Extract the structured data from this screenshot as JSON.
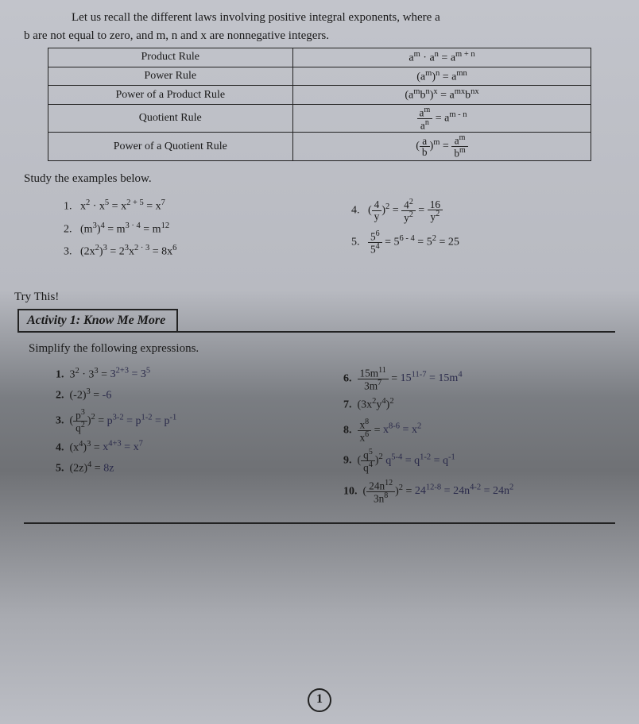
{
  "intro_line1": "Let us recall the different laws involving positive integral exponents, where a",
  "intro_line2": "b are not equal to zero, and m, n and x are nonnegative integers.",
  "rules": [
    {
      "name": "Product Rule",
      "formula_html": "a<span class='sup'>m</span> · a<span class='sup'>n</span> = a<span class='sup'>m + n</span>"
    },
    {
      "name": "Power Rule",
      "formula_html": "(a<span class='sup'>m</span>)<span class='sup'>n</span> = a<span class='sup'>mn</span>"
    },
    {
      "name": "Power of a Product Rule",
      "formula_html": "(a<span class='sup'>m</span>b<span class='sup'>n</span>)<span class='sup'>x</span> = a<span class='sup'>mx</span>b<span class='sup'>nx</span>"
    },
    {
      "name": "Quotient Rule",
      "formula_html": "<span class='frac'><span class='num'>a<span class='sup'>m</span></span><span class='den'>a<span class='sup'>n</span></span></span> = a<span class='sup'>m - n</span>"
    },
    {
      "name": "Power of a Quotient Rule",
      "formula_html": "(<span class='frac'><span class='num'>a</span><span class='den'>b</span></span>)<span class='sup'>m</span> = <span class='frac'><span class='num'>a<span class='sup'>m</span></span><span class='den'>b<span class='sup'>m</span></span></span>"
    }
  ],
  "study_label": "Study the examples below.",
  "examples_left": [
    "1.&nbsp;&nbsp; x<span class='sup'>2</span> · x<span class='sup'>5</span> = x<span class='sup'>2 + 5</span> = x<span class='sup'>7</span>",
    "2.&nbsp;&nbsp; (m<span class='sup'>3</span>)<span class='sup'>4</span> = m<span class='sup'>3 · 4</span> = m<span class='sup'>12</span>",
    "3.&nbsp;&nbsp; (2x<span class='sup'>2</span>)<span class='sup'>3</span> = 2<span class='sup'>3</span>x<span class='sup'>2 · 3</span> = 8x<span class='sup'>6</span>"
  ],
  "examples_right": [
    "4.&nbsp;&nbsp; (<span class='frac'><span class='num'>4</span><span class='den'>y</span></span>)<span class='sup'>2</span> = <span class='frac'><span class='num'>4<span class='sup'>2</span></span><span class='den'>y<span class='sup'>2</span></span></span> = <span class='frac'><span class='num'>16</span><span class='den'>y<span class='sup'>2</span></span></span>",
    "5.&nbsp;&nbsp; <span class='frac'><span class='num'>5<span class='sup'>6</span></span><span class='den'>5<span class='sup'>4</span></span></span> = 5<span class='sup'>6 - 4</span> = 5<span class='sup'>2</span> = 25"
  ],
  "try_this": "Try This!",
  "activity_label": "Activity 1:",
  "activity_title": "Know Me More",
  "simplify_label": "Simplify the following expressions.",
  "problems_left": [
    {
      "num": "1.",
      "printed": "3<span class='sup'>2</span> · 3<span class='sup'>3</span> =",
      "hand": " 3<span class='sup'>2+3</span> = 3<span class='sup'>5</span>"
    },
    {
      "num": "2.",
      "printed": "(-2)<span class='sup'>3</span> =",
      "hand": " -6"
    },
    {
      "num": "3.",
      "printed": "(<span class='frac'><span class='num'>p<span class='sup'>3</span></span><span class='den'>q<span class='sup'>2</span></span></span>)<span class='sup'>2</span> =",
      "hand": " p<span class='sup'>3-2</span> = p<span class='sup'>1-2</span> = p<span class='sup'>-1</span>"
    },
    {
      "num": "4.",
      "printed": "(x<span class='sup'>4</span>)<span class='sup'>3</span> =",
      "hand": " x<span class='sup'>4+3</span> = x<span class='sup'>7</span>"
    },
    {
      "num": "5.",
      "printed": "(2z)<span class='sup'>4</span> =",
      "hand": " 8z"
    }
  ],
  "problems_right": [
    {
      "num": "6.",
      "printed": "<span class='frac'><span class='num'>15m<span class='sup'>11</span></span><span class='den'>3m<span class='sup'>7</span></span></span> =",
      "hand": " 15<span class='sup'>11-7</span> = 15m<span class='sup'>4</span>"
    },
    {
      "num": "7.",
      "printed": "(3x<span class='sup'>2</span>y<span class='sup'>4</span>)<span class='sup'>2</span>",
      "hand": ""
    },
    {
      "num": "8.",
      "printed": "<span class='frac'><span class='num'>x<span class='sup'>8</span></span><span class='den'>x<span class='sup'>6</span></span></span> =",
      "hand": " x<span class='sup'>8-6</span> = x<span class='sup'>2</span>"
    },
    {
      "num": "9.",
      "printed": "(<span class='frac'><span class='num'>q<span class='sup'>5</span></span><span class='den'>q<span class='sup'>4</span></span></span>)<span class='sup'>2</span>",
      "hand": " q<span class='sup'>5-4</span> = q<span class='sup'>1-2</span> = q<span class='sup'>-1</span>"
    },
    {
      "num": "10.",
      "printed": "(<span class='frac'><span class='num'>24n<span class='sup'>12</span></span><span class='den'>3n<span class='sup'>8</span></span></span>)<span class='sup'>2</span> =",
      "hand": " 24<span class='sup'>12-8</span> = 24n<span class='sup'>4-2</span> = 24n<span class='sup'>2</span>"
    }
  ],
  "page_number": "1"
}
